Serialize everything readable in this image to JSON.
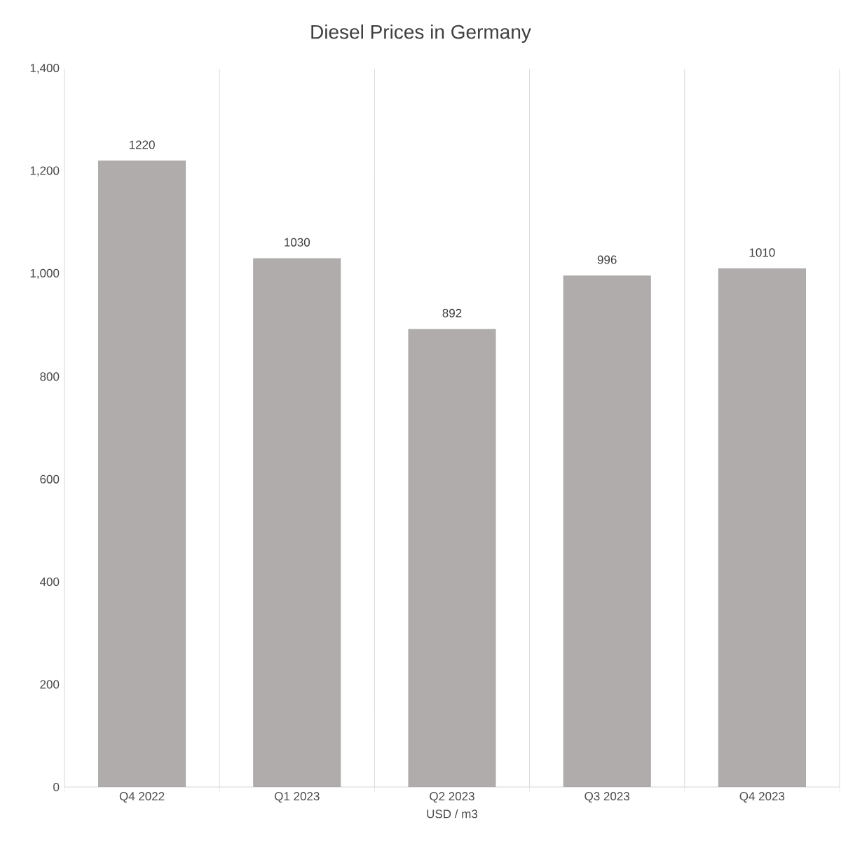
{
  "chart_data": {
    "type": "bar",
    "title": "Diesel Prices in Germany",
    "xlabel": "USD / m3",
    "categories": [
      "Q4 2022",
      "Q1 2023",
      "Q2 2023",
      "Q3 2023",
      "Q4 2023"
    ],
    "values": [
      1220,
      1030,
      892,
      996,
      1010
    ],
    "color": "#b0acab",
    "ylim": [
      0,
      1400
    ],
    "yticks": [
      0,
      200,
      400,
      600,
      800,
      {
        "value": 1000,
        "label": "1,000"
      },
      {
        "value": 1200,
        "label": "1,200"
      },
      {
        "value": 1400,
        "label": "1,400"
      }
    ],
    "grid": "x",
    "data_labels": true
  }
}
